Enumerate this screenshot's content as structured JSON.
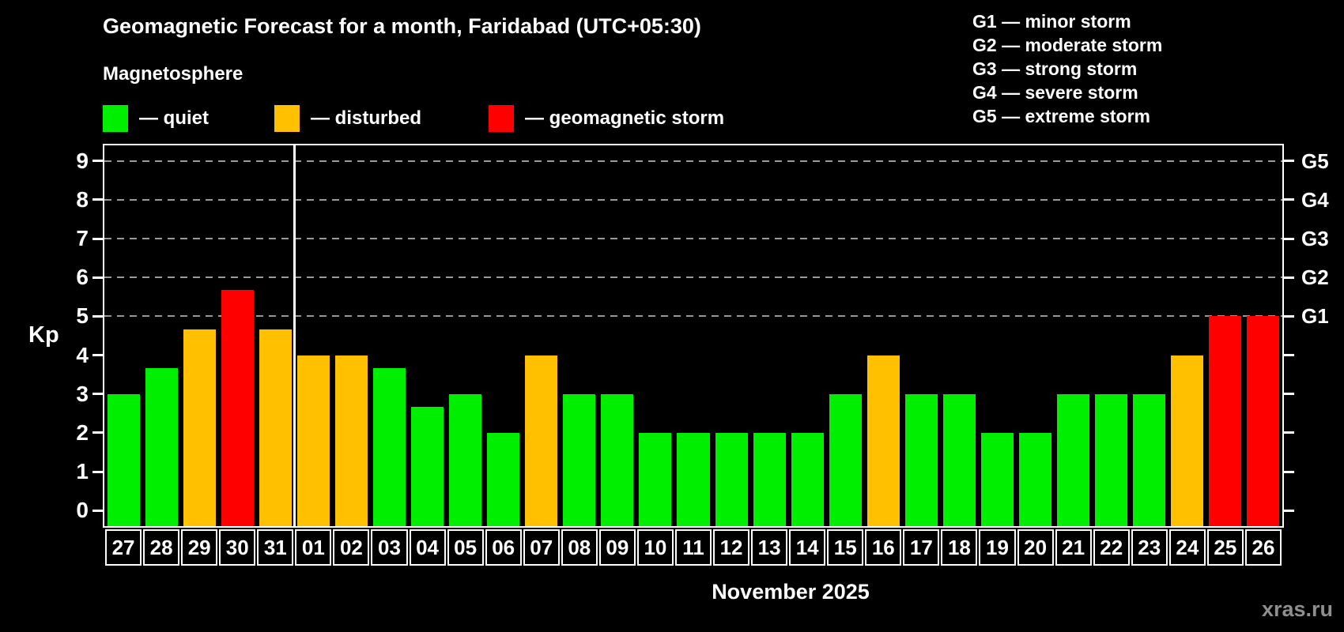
{
  "header": {
    "title": "Geomagnetic Forecast for a month, Faridabad (UTC+05:30)",
    "subtitle": "Magnetosphere"
  },
  "legend": {
    "items": [
      {
        "name": "quiet",
        "label": "— quiet",
        "color": "#00ee00"
      },
      {
        "name": "disturbed",
        "label": "— disturbed",
        "color": "#ffc000"
      },
      {
        "name": "storm",
        "label": "— geomagnetic storm",
        "color": "#ff0000"
      }
    ]
  },
  "storm_legend": {
    "lines": [
      "G1 — minor storm",
      "G2 — moderate storm",
      "G3 — strong storm",
      "G4 — severe storm",
      "G5 — extreme storm"
    ]
  },
  "watermark": "xras.ru",
  "chart_data": {
    "type": "bar",
    "title": "Geomagnetic Forecast for a month, Faridabad (UTC+05:30)",
    "ylabel": "Kp",
    "xlabel": "November 2025",
    "ylim": [
      -0.4,
      9.4
    ],
    "yticks_left": [
      0,
      1,
      2,
      3,
      4,
      5,
      6,
      7,
      8,
      9
    ],
    "yticks_right": [
      {
        "kp": 5,
        "label": "G1"
      },
      {
        "kp": 6,
        "label": "G2"
      },
      {
        "kp": 7,
        "label": "G3"
      },
      {
        "kp": 8,
        "label": "G4"
      },
      {
        "kp": 9,
        "label": "G5"
      }
    ],
    "gridlines_kp": [
      5,
      6,
      7,
      8,
      9
    ],
    "grid": "dashed-horizontal",
    "legend_position": "top",
    "month_separator_after_category": "31",
    "categories": [
      "27",
      "28",
      "29",
      "30",
      "31",
      "01",
      "02",
      "03",
      "04",
      "05",
      "06",
      "07",
      "08",
      "09",
      "10",
      "11",
      "12",
      "13",
      "14",
      "15",
      "16",
      "17",
      "18",
      "19",
      "20",
      "21",
      "22",
      "23",
      "24",
      "25",
      "26"
    ],
    "values": [
      3,
      3.67,
      4.67,
      5.67,
      4.67,
      4,
      4,
      3.67,
      2.67,
      3,
      2,
      4,
      3,
      3,
      2,
      2,
      2,
      2,
      2,
      3,
      4,
      3,
      3,
      2,
      2,
      3,
      3,
      3,
      4,
      5,
      5
    ],
    "statuses": [
      "quiet",
      "quiet",
      "disturbed",
      "storm",
      "disturbed",
      "disturbed",
      "disturbed",
      "quiet",
      "quiet",
      "quiet",
      "quiet",
      "disturbed",
      "quiet",
      "quiet",
      "quiet",
      "quiet",
      "quiet",
      "quiet",
      "quiet",
      "quiet",
      "disturbed",
      "quiet",
      "quiet",
      "quiet",
      "quiet",
      "quiet",
      "quiet",
      "quiet",
      "disturbed",
      "storm",
      "storm"
    ],
    "status_colors": {
      "quiet": "#00ee00",
      "disturbed": "#ffc000",
      "storm": "#ff0000"
    }
  }
}
